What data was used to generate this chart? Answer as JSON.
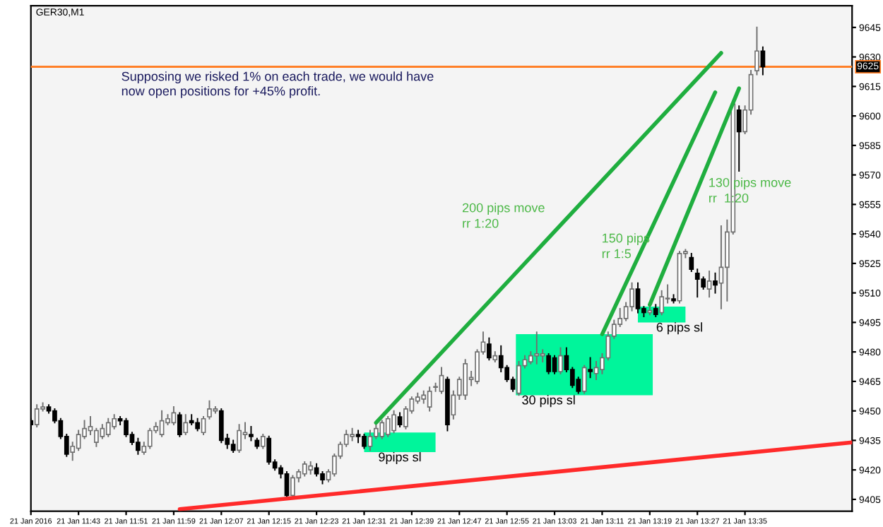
{
  "chart_data": {
    "type": "candlestick",
    "title": "GER30,M1",
    "series": [
      {
        "x": [
          "2016-01-21T11:35",
          "2016-01-21T11:36",
          "2016-01-21T11:37",
          "2016-01-21T11:38",
          "2016-01-21T11:39",
          "2016-01-21T11:40",
          "2016-01-21T11:41",
          "2016-01-21T11:42",
          "2016-01-21T11:43",
          "2016-01-21T11:44",
          "2016-01-21T11:45",
          "2016-01-21T11:46",
          "2016-01-21T11:47",
          "2016-01-21T11:48",
          "2016-01-21T11:49",
          "2016-01-21T11:50",
          "2016-01-21T11:51",
          "2016-01-21T11:52",
          "2016-01-21T11:53",
          "2016-01-21T11:54",
          "2016-01-21T11:55",
          "2016-01-21T11:56",
          "2016-01-21T11:57",
          "2016-01-21T11:58",
          "2016-01-21T11:59",
          "2016-01-21T12:00",
          "2016-01-21T12:01",
          "2016-01-21T12:02",
          "2016-01-21T12:03",
          "2016-01-21T12:04",
          "2016-01-21T12:05",
          "2016-01-21T12:06",
          "2016-01-21T12:07",
          "2016-01-21T12:08",
          "2016-01-21T12:09",
          "2016-01-21T12:10",
          "2016-01-21T12:11",
          "2016-01-21T12:12",
          "2016-01-21T12:13",
          "2016-01-21T12:14",
          "2016-01-21T12:15",
          "2016-01-21T12:16",
          "2016-01-21T12:17",
          "2016-01-21T12:18",
          "2016-01-21T12:19",
          "2016-01-21T12:20",
          "2016-01-21T12:21",
          "2016-01-21T12:22",
          "2016-01-21T12:23",
          "2016-01-21T12:24",
          "2016-01-21T12:25",
          "2016-01-21T12:26",
          "2016-01-21T12:27",
          "2016-01-21T12:28",
          "2016-01-21T12:29",
          "2016-01-21T12:30",
          "2016-01-21T12:31",
          "2016-01-21T12:32",
          "2016-01-21T12:33",
          "2016-01-21T12:34",
          "2016-01-21T12:35",
          "2016-01-21T12:36",
          "2016-01-21T12:37",
          "2016-01-21T12:38",
          "2016-01-21T12:39",
          "2016-01-21T12:40",
          "2016-01-21T12:41",
          "2016-01-21T12:42",
          "2016-01-21T12:43",
          "2016-01-21T12:44",
          "2016-01-21T12:45",
          "2016-01-21T12:46",
          "2016-01-21T12:47",
          "2016-01-21T12:48",
          "2016-01-21T12:49",
          "2016-01-21T12:50",
          "2016-01-21T12:51",
          "2016-01-21T12:52",
          "2016-01-21T12:53",
          "2016-01-21T12:54",
          "2016-01-21T12:55",
          "2016-01-21T12:56",
          "2016-01-21T12:57",
          "2016-01-21T12:58",
          "2016-01-21T12:59",
          "2016-01-21T13:00",
          "2016-01-21T13:01",
          "2016-01-21T13:02",
          "2016-01-21T13:03",
          "2016-01-21T13:04",
          "2016-01-21T13:05",
          "2016-01-21T13:06",
          "2016-01-21T13:07",
          "2016-01-21T13:08",
          "2016-01-21T13:09",
          "2016-01-21T13:10",
          "2016-01-21T13:11",
          "2016-01-21T13:12",
          "2016-01-21T13:13",
          "2016-01-21T13:14",
          "2016-01-21T13:15",
          "2016-01-21T13:16",
          "2016-01-21T13:17",
          "2016-01-21T13:18",
          "2016-01-21T13:19",
          "2016-01-21T13:20",
          "2016-01-21T13:21",
          "2016-01-21T13:22",
          "2016-01-21T13:23",
          "2016-01-21T13:24",
          "2016-01-21T13:25",
          "2016-01-21T13:26",
          "2016-01-21T13:27",
          "2016-01-21T13:28",
          "2016-01-21T13:29",
          "2016-01-21T13:30",
          "2016-01-21T13:31",
          "2016-01-21T13:32",
          "2016-01-21T13:33",
          "2016-01-21T13:34",
          "2016-01-21T13:35",
          "2016-01-21T13:36",
          "2016-01-21T13:37",
          "2016-01-21T13:38"
        ],
        "ohlc": [
          [
            9445,
            9446,
            9441,
            9443
          ],
          [
            9443,
            9453,
            9442,
            9451
          ],
          [
            9451,
            9454,
            9450,
            9452
          ],
          [
            9452,
            9453,
            9449,
            9450
          ],
          [
            9450,
            9451,
            9444,
            9445
          ],
          [
            9445,
            9446,
            9436,
            9437
          ],
          [
            9437,
            9438,
            9427,
            9428
          ],
          [
            9429,
            9434,
            9425,
            9432
          ],
          [
            9431,
            9440,
            9430,
            9438
          ],
          [
            9437,
            9445,
            9436,
            9441
          ],
          [
            9440,
            9447,
            9438,
            9442
          ],
          [
            9434,
            9441,
            9432,
            9440
          ],
          [
            9437,
            9443,
            9436,
            9441
          ],
          [
            9438,
            9446,
            9437,
            9444
          ],
          [
            9442,
            9448,
            9441,
            9446
          ],
          [
            9446,
            9447,
            9443,
            9445
          ],
          [
            9445,
            9446,
            9437,
            9438
          ],
          [
            9438,
            9439,
            9433,
            9434
          ],
          [
            9434,
            9436,
            9428,
            9430
          ],
          [
            9429,
            9434,
            9428,
            9432
          ],
          [
            9432,
            9441,
            9431,
            9440
          ],
          [
            9440,
            9444,
            9439,
            9442
          ],
          [
            9438,
            9450,
            9437,
            9445
          ],
          [
            9444,
            9448,
            9443,
            9446
          ],
          [
            9444,
            9452,
            9443,
            9449
          ],
          [
            9448,
            9449,
            9437,
            9438
          ],
          [
            9439,
            9448,
            9438,
            9444
          ],
          [
            9445,
            9448,
            9443,
            9444
          ],
          [
            9444,
            9446,
            9440,
            9441
          ],
          [
            9439,
            9447,
            9438,
            9446
          ],
          [
            9447,
            9455,
            9446,
            9451
          ],
          [
            9450,
            9452,
            9449,
            9451
          ],
          [
            9450,
            9451,
            9434,
            9435
          ],
          [
            9436,
            9438,
            9431,
            9433
          ],
          [
            9433,
            9435,
            9429,
            9430
          ],
          [
            9430,
            9443,
            9429,
            9440
          ],
          [
            9438,
            9444,
            9436,
            9439
          ],
          [
            9438,
            9442,
            9435,
            9437
          ],
          [
            9435,
            9436,
            9431,
            9432
          ],
          [
            9432,
            9438,
            9431,
            9437
          ],
          [
            9436,
            9437,
            9423,
            9424
          ],
          [
            9424,
            9425,
            9420,
            9421
          ],
          [
            9421,
            9422,
            9416,
            9418
          ],
          [
            9418,
            9419,
            9406,
            9407
          ],
          [
            9407,
            9417,
            9406,
            9416
          ],
          [
            9416,
            9420,
            9414,
            9419
          ],
          [
            9418,
            9424,
            9417,
            9423
          ],
          [
            9420,
            9424,
            9418,
            9422
          ],
          [
            9421,
            9423,
            9417,
            9418
          ],
          [
            9418,
            9419,
            9413,
            9415
          ],
          [
            9415,
            9420,
            9414,
            9419
          ],
          [
            9418,
            9428,
            9417,
            9427
          ],
          [
            9427,
            9434,
            9426,
            9433
          ],
          [
            9433,
            9440,
            9432,
            9438
          ],
          [
            9437,
            9441,
            9435,
            9438
          ],
          [
            9438,
            9440,
            9434,
            9437
          ],
          [
            9437,
            9438,
            9431,
            9432
          ],
          [
            9432,
            9440,
            9430,
            9437
          ],
          [
            9437,
            9443,
            9436,
            9441
          ],
          [
            9437,
            9445,
            9436,
            9444
          ],
          [
            9438,
            9447,
            9437,
            9446
          ],
          [
            9440,
            9450,
            9439,
            9448
          ],
          [
            9447,
            9449,
            9442,
            9443
          ],
          [
            9442,
            9452,
            9441,
            9451
          ],
          [
            9450,
            9457,
            9449,
            9456
          ],
          [
            9455,
            9459,
            9454,
            9457
          ],
          [
            9456,
            9460,
            9454,
            9458
          ],
          [
            9452,
            9462,
            9450,
            9460
          ],
          [
            9462,
            9464,
            9460,
            9462
          ],
          [
            9460,
            9472,
            9459,
            9468
          ],
          [
            9466,
            9467,
            9440,
            9443
          ],
          [
            9448,
            9460,
            9446,
            9458
          ],
          [
            9458,
            9467,
            9456,
            9466
          ],
          [
            9458,
            9476,
            9456,
            9474
          ],
          [
            9466,
            9470,
            9463,
            9467
          ],
          [
            9465,
            9481,
            9464,
            9480
          ],
          [
            9480,
            9490,
            9479,
            9485
          ],
          [
            9484,
            9487,
            9476,
            9477
          ],
          [
            9476,
            9480,
            9475,
            9478
          ],
          [
            9478,
            9483,
            9470,
            9472
          ],
          [
            9472,
            9473,
            9465,
            9466
          ],
          [
            9466,
            9467,
            9460,
            9461
          ],
          [
            9459,
            9475,
            9458,
            9473
          ],
          [
            9473,
            9478,
            9472,
            9476
          ],
          [
            9475,
            9480,
            9474,
            9478
          ],
          [
            9478,
            9490,
            9474,
            9479
          ],
          [
            9478,
            9481,
            9475,
            9479
          ],
          [
            9478,
            9479,
            9469,
            9470
          ],
          [
            9477,
            9478,
            9469,
            9470
          ],
          [
            9470,
            9482,
            9469,
            9478
          ],
          [
            9478,
            9482,
            9470,
            9471
          ],
          [
            9471,
            9472,
            9462,
            9463
          ],
          [
            9466,
            9467,
            9459,
            9460
          ],
          [
            9460,
            9473,
            9459,
            9472
          ],
          [
            9471,
            9477,
            9467,
            9470
          ],
          [
            9469,
            9475,
            9466,
            9472
          ],
          [
            9471,
            9479,
            9469,
            9477
          ],
          [
            9477,
            9490,
            9476,
            9488
          ],
          [
            9488,
            9496,
            9487,
            9494
          ],
          [
            9494,
            9502,
            9493,
            9497
          ],
          [
            9497,
            9505,
            9496,
            9503
          ],
          [
            9503,
            9515,
            9501,
            9512
          ],
          [
            9512,
            9515,
            9500,
            9502
          ],
          [
            9502,
            9503,
            9498,
            9500
          ],
          [
            9500,
            9503,
            9499,
            9501
          ],
          [
            9502,
            9504,
            9498,
            9499
          ],
          [
            9500,
            9511,
            9499,
            9508
          ],
          [
            9507,
            9514,
            9505,
            9507
          ],
          [
            9507,
            9509,
            9505,
            9506
          ],
          [
            9506,
            9531,
            9505,
            9530
          ],
          [
            9530,
            9532,
            9528,
            9531
          ],
          [
            9528,
            9530,
            9521,
            9522
          ],
          [
            9520,
            9522,
            9508,
            9517
          ],
          [
            9517,
            9518,
            9512,
            9513
          ],
          [
            9512,
            9521,
            9508,
            9516
          ],
          [
            9516,
            9520,
            9510,
            9514
          ],
          [
            9515,
            9544,
            9502,
            9523
          ],
          [
            9523,
            9547,
            9506,
            9541
          ],
          [
            9541,
            9607,
            9540,
            9606
          ],
          [
            9603,
            9605,
            9572,
            9592
          ],
          [
            9592,
            9605,
            9591,
            9603
          ],
          [
            9603,
            9623,
            9601,
            9621
          ],
          [
            9623,
            9645,
            9621,
            9633
          ],
          [
            9633,
            9635,
            9621,
            9625
          ]
        ]
      },
      {
        "type": "line",
        "color": "#ff2a2a",
        "x": [
          "2016-01-21T12:00",
          "2016-01-21T13:53"
        ],
        "values": [
          9400,
          9434
        ]
      },
      {
        "type": "line",
        "color": "#1fae3f",
        "x": [
          "2016-01-21T12:33",
          "2016-01-21T13:31"
        ],
        "values": [
          9444,
          9632
        ]
      },
      {
        "type": "line",
        "color": "#1fae3f",
        "x": [
          "2016-01-21T13:11",
          "2016-01-21T13:30"
        ],
        "values": [
          9489,
          9612
        ]
      },
      {
        "type": "line",
        "color": "#1fae3f",
        "x": [
          "2016-01-21T13:19",
          "2016-01-21T13:34"
        ],
        "values": [
          9504,
          9614
        ]
      },
      {
        "type": "bar",
        "color": "#00f59b",
        "x": [
          "2016-01-21T12:37",
          "2016-01-21T13:08",
          "2016-01-21T13:21"
        ],
        "base": [
          9429,
          9458,
          9495
        ],
        "values": [
          10,
          31,
          8
        ]
      }
    ],
    "xlim": [
      "2016-01-21T11:35",
      "2016-01-21T13:53"
    ],
    "xticks": [
      {
        "value": "2016-01-21T11:35",
        "label": "21 Jan 2016"
      },
      {
        "value": "2016-01-21T11:43",
        "label": "21 Jan 11:43"
      },
      {
        "value": "2016-01-21T11:51",
        "label": "21 Jan 11:51"
      },
      {
        "value": "2016-01-21T11:59",
        "label": "21 Jan 11:59"
      },
      {
        "value": "2016-01-21T12:07",
        "label": "21 Jan 12:07"
      },
      {
        "value": "2016-01-21T12:15",
        "label": "21 Jan 12:15"
      },
      {
        "value": "2016-01-21T12:23",
        "label": "21 Jan 12:23"
      },
      {
        "value": "2016-01-21T12:31",
        "label": "21 Jan 12:31"
      },
      {
        "value": "2016-01-21T12:39",
        "label": "21 Jan 12:39"
      },
      {
        "value": "2016-01-21T12:47",
        "label": "21 Jan 12:47"
      },
      {
        "value": "2016-01-21T12:55",
        "label": "21 Jan 12:55"
      },
      {
        "value": "2016-01-21T13:03",
        "label": "21 Jan 13:03"
      },
      {
        "value": "2016-01-21T13:11",
        "label": "21 Jan 13:11"
      },
      {
        "value": "2016-01-21T13:19",
        "label": "21 Jan 13:19"
      },
      {
        "value": "2016-01-21T13:27",
        "label": "21 Jan 13:27"
      },
      {
        "value": "2016-01-21T13:35",
        "label": "21 Jan 13:35"
      }
    ],
    "ylim": [
      9399,
      9656
    ],
    "yticks": [
      9405,
      9420,
      9435,
      9450,
      9465,
      9480,
      9495,
      9510,
      9525,
      9540,
      9555,
      9570,
      9585,
      9600,
      9615,
      9630,
      9645
    ],
    "ref_lines": [
      {
        "axis": "y",
        "value": 9625,
        "label": "9625",
        "color": "#ff7f27"
      }
    ],
    "annotations": [
      "Supposing we risked 1% on each trade, we would have\nnow open positions for +45% profit.",
      "200 pips move\nrr 1:20",
      "150 pips\nrr 1:5",
      "130 pips move\nrr  1:20",
      {
        "text": "9pips sl",
        "x": "2016-01-21T12:37",
        "y": 9426
      },
      {
        "text": "30 pips sl",
        "x": "2016-01-21T13:02",
        "y": 9455
      },
      {
        "text": "6 pips sl",
        "x": "2016-01-21T13:24",
        "y": 9492
      }
    ],
    "grid": false,
    "legend": false
  }
}
